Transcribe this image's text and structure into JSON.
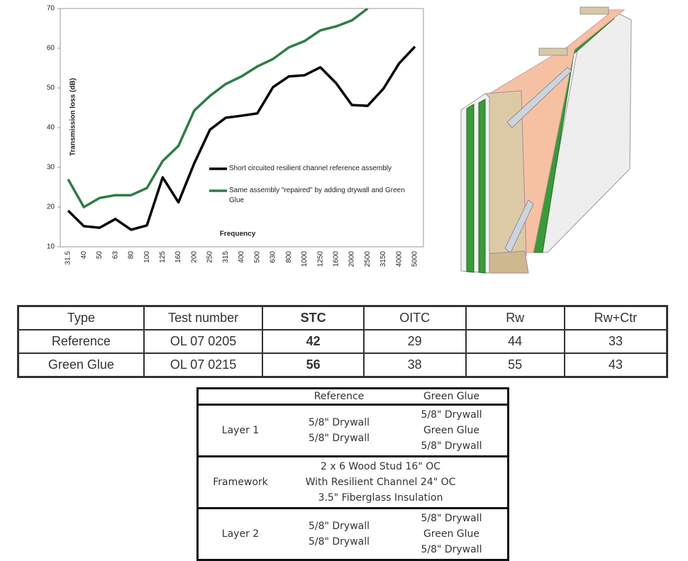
{
  "chart_data": {
    "type": "line",
    "y_label": "Transmission loss (dB)",
    "x_label": "Frequency",
    "categories": [
      "31.5",
      "40",
      "50",
      "63",
      "80",
      "100",
      "125",
      "160",
      "200",
      "250",
      "315",
      "400",
      "500",
      "630",
      "800",
      "1000",
      "1250",
      "1600",
      "2000",
      "2500",
      "3150",
      "4000",
      "5000"
    ],
    "series": [
      {
        "name": "Short circuited resilient channel reference assembly",
        "color": "#000000",
        "values": [
          19.1,
          15.2,
          14.8,
          17,
          14.3,
          15.4,
          27.5,
          21.2,
          31,
          39.5,
          42.5,
          43,
          43.6,
          50.2,
          52.9,
          53.2,
          55.2,
          51.2,
          45.7,
          45.5,
          49.8,
          56.2,
          60.4
        ]
      },
      {
        "name": "Same assembly \"repaired\" by adding drywall and Green Glue",
        "color": "#2e7d46",
        "values": [
          27,
          20,
          22.3,
          23,
          23,
          24.8,
          31.6,
          35.4,
          44.3,
          48,
          51,
          52.9,
          55.4,
          57.3,
          60.2,
          61.8,
          64.5,
          65.5,
          67,
          70,
          null,
          null,
          null
        ]
      }
    ],
    "ylim": [
      10,
      70
    ],
    "yticks": [
      10,
      20,
      30,
      40,
      50,
      60,
      70
    ],
    "grid": false
  },
  "spec_table": {
    "columns": [
      "Type",
      "Test number",
      "STC",
      "OITC",
      "Rw",
      "Rw+Ctr"
    ],
    "rows": [
      [
        "Reference",
        "OL 07 0205",
        "42",
        "29",
        "44",
        "33"
      ],
      [
        "Green Glue",
        "OL 07 0215",
        "56",
        "38",
        "55",
        "43"
      ]
    ]
  },
  "assembly_table": {
    "columns": [
      "Reference",
      "Green Glue"
    ],
    "rows": [
      {
        "label": "Layer 1",
        "reference": [
          "5/8\" Drywall",
          "5/8\" Drywall"
        ],
        "green_glue": [
          "5/8\" Drywall",
          "Green Glue",
          "5/8\" Drywall"
        ]
      },
      {
        "label": "Framework",
        "shared": [
          "2 x 6 Wood Stud 16\" OC",
          "With Resilient Channel 24\" OC",
          "3.5\" Fiberglass Insulation"
        ]
      },
      {
        "label": "Layer 2",
        "reference": [
          "5/8\" Drywall",
          "5/8\" Drywall"
        ],
        "green_glue": [
          "5/8\" Drywall",
          "Green Glue",
          "5/8\" Drywall"
        ]
      }
    ]
  }
}
